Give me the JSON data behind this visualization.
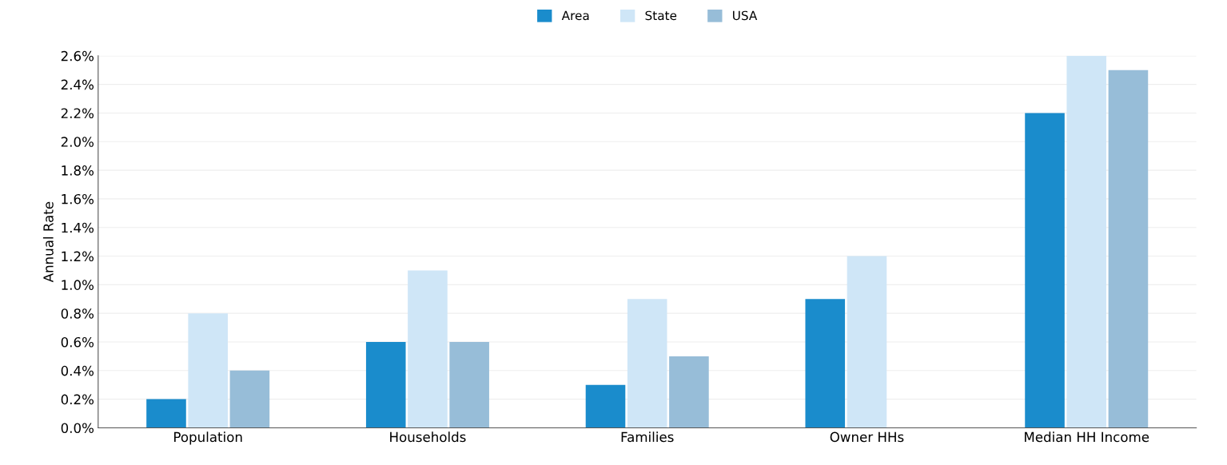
{
  "chart_data": {
    "type": "bar",
    "ylabel": "Annual Rate",
    "categories": [
      "Population",
      "Households",
      "Families",
      "Owner HHs",
      "Median HH Income"
    ],
    "series": [
      {
        "name": "Area",
        "color": "#1a8ccc",
        "values": [
          0.2,
          0.6,
          0.3,
          0.9,
          2.2
        ]
      },
      {
        "name": "State",
        "color": "#cfe6f7",
        "values": [
          0.8,
          1.1,
          0.9,
          1.2,
          2.6
        ]
      },
      {
        "name": "USA",
        "color": "#97bdd8",
        "values": [
          0.4,
          0.6,
          0.5,
          null,
          2.5
        ]
      }
    ],
    "ylim": [
      0,
      2.6
    ],
    "yticks": [
      {
        "value": 0,
        "label": "0.0%"
      },
      {
        "value": 0.2,
        "label": "0.2%"
      },
      {
        "value": 0.4,
        "label": "0.4%"
      },
      {
        "value": 0.6,
        "label": "0.6%"
      },
      {
        "value": 0.8,
        "label": "0.8%"
      },
      {
        "value": 1.0,
        "label": "1.0%"
      },
      {
        "value": 1.2,
        "label": "1.2%"
      },
      {
        "value": 1.4,
        "label": "1.4%"
      },
      {
        "value": 1.6,
        "label": "1.6%"
      },
      {
        "value": 1.8,
        "label": "1.8%"
      },
      {
        "value": 2.0,
        "label": "2.0%"
      },
      {
        "value": 2.2,
        "label": "2.2%"
      },
      {
        "value": 2.4,
        "label": "2.4%"
      },
      {
        "value": 2.6,
        "label": "2.6%"
      }
    ],
    "grid": "y",
    "legend": "top"
  }
}
